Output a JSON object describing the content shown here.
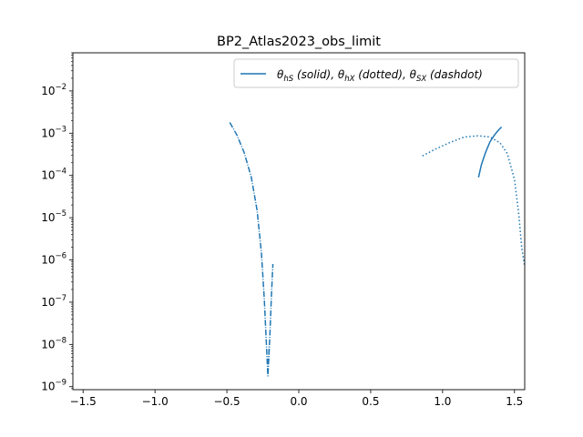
{
  "chart_data": {
    "type": "line",
    "title": "BP2_Atlas2023_obs_limit",
    "xlabel": "",
    "ylabel": "",
    "xlim": [
      -1.571,
      1.571
    ],
    "ylim": [
      8.5e-10,
      0.08
    ],
    "yscale": "log",
    "x_ticks": [
      -1.5,
      -1.0,
      -0.5,
      0.0,
      0.5,
      1.0,
      1.5
    ],
    "x_tick_labels": [
      "−1.5",
      "−1.0",
      "−0.5",
      "0.0",
      "0.5",
      "1.0",
      "1.5"
    ],
    "y_ticks": [
      1e-09,
      1e-08,
      1e-07,
      1e-06,
      1e-05,
      0.0001,
      0.001,
      0.01
    ],
    "y_tick_labels": [
      "10⁻⁹",
      "10⁻⁸",
      "10⁻⁷",
      "10⁻⁶",
      "10⁻⁵",
      "10⁻⁴",
      "10⁻³",
      "10⁻²"
    ],
    "grid": false,
    "legend": {
      "placement": "top-right",
      "entries": [
        {
          "label": "θhS (solid), θhX (dotted), θSX (dashdot)",
          "color": "#1f77b4"
        }
      ]
    },
    "series": [
      {
        "style": "solid",
        "color": "#1f77b4",
        "points": [
          [
            1.25,
            9e-05
          ],
          [
            1.27,
            0.00018
          ],
          [
            1.3,
            0.00036
          ],
          [
            1.33,
            0.00063
          ],
          [
            1.36,
            0.0009
          ],
          [
            1.39,
            0.0012
          ],
          [
            1.41,
            0.0014
          ]
        ]
      },
      {
        "style": "dotted",
        "color": "#1f77b4",
        "points": [
          [
            0.86,
            0.00029
          ],
          [
            0.95,
            0.00042
          ],
          [
            1.05,
            0.0006
          ],
          [
            1.15,
            0.00081
          ],
          [
            1.25,
            0.00087
          ],
          [
            1.33,
            0.00081
          ],
          [
            1.4,
            0.00059
          ],
          [
            1.45,
            0.00033
          ],
          [
            1.5,
            8e-05
          ],
          [
            1.53,
            1.2e-05
          ],
          [
            1.55,
            2e-06
          ],
          [
            1.571,
            7e-07
          ]
        ]
      },
      {
        "style": "dashdot",
        "color": "#1f77b4",
        "points": [
          [
            -0.48,
            0.0018
          ],
          [
            -0.43,
            0.0009
          ],
          [
            -0.38,
            0.00035
          ],
          [
            -0.33,
            9e-05
          ],
          [
            -0.29,
            1.5e-05
          ],
          [
            -0.26,
            1.5e-06
          ],
          [
            -0.24,
            1.2e-07
          ],
          [
            -0.225,
            1e-08
          ],
          [
            -0.215,
            1.8e-09
          ],
          [
            -0.21,
            4e-09
          ],
          [
            -0.2,
            2e-08
          ],
          [
            -0.19,
            1.5e-07
          ],
          [
            -0.18,
            8e-07
          ]
        ]
      },
      {
        "style": "dashdot",
        "color": "#1f77b4",
        "points": [
          [
            -0.215,
            2e-09
          ],
          [
            -0.21,
            4e-09
          ],
          [
            -0.205,
            1e-08
          ]
        ]
      }
    ]
  }
}
